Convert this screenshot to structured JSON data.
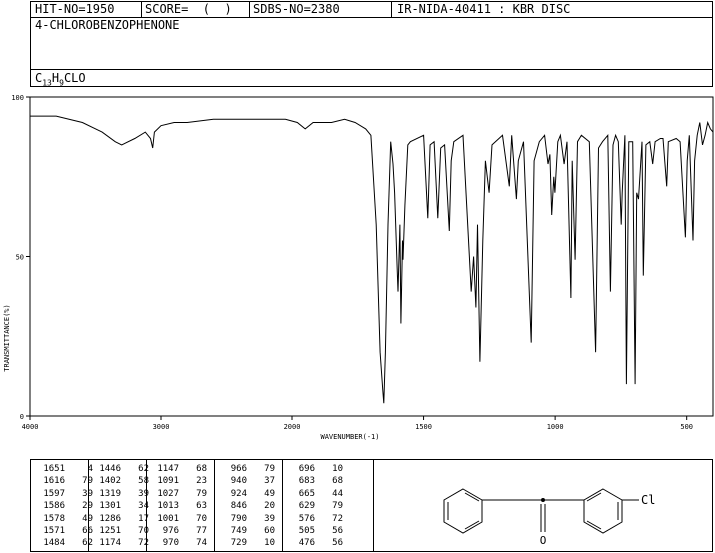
{
  "header": {
    "hit_no": "HIT-NO=1950",
    "score": "SCORE=  (  )",
    "sdbs_no": "SDBS-NO=2380",
    "ir_id": "IR-NIDA-40411 : KBR DISC",
    "compound_name": "4-CHLOROBENZOPHENONE",
    "formula": {
      "c": "C",
      "c_count": "13",
      "h": "H",
      "h_count": "9",
      "rest": "CLO"
    }
  },
  "chart_data": {
    "type": "line",
    "xlabel": "WAVENUMBER(-1)",
    "ylabel": "TRANSMITTANCE(%)",
    "xlim": [
      4000,
      400
    ],
    "ylim": [
      0,
      100
    ],
    "x_ticks": [
      "4000",
      "3000",
      "2000",
      "1500",
      "1000",
      "500"
    ],
    "y_ticks": [
      "100",
      "50",
      "0"
    ],
    "series": [
      {
        "points": [
          [
            4000,
            94
          ],
          [
            3800,
            94
          ],
          [
            3600,
            92
          ],
          [
            3450,
            89
          ],
          [
            3350,
            86
          ],
          [
            3300,
            85
          ],
          [
            3200,
            87
          ],
          [
            3120,
            89
          ],
          [
            3080,
            87
          ],
          [
            3063,
            84
          ],
          [
            3050,
            89
          ],
          [
            3000,
            91
          ],
          [
            2900,
            92
          ],
          [
            2800,
            92
          ],
          [
            2600,
            93
          ],
          [
            2400,
            93
          ],
          [
            2200,
            93
          ],
          [
            2050,
            93
          ],
          [
            1980,
            92
          ],
          [
            1950,
            90
          ],
          [
            1920,
            92
          ],
          [
            1850,
            92
          ],
          [
            1800,
            93
          ],
          [
            1760,
            92
          ],
          [
            1720,
            90
          ],
          [
            1700,
            88
          ],
          [
            1680,
            60
          ],
          [
            1665,
            20
          ],
          [
            1655,
            8
          ],
          [
            1651,
            4
          ],
          [
            1645,
            20
          ],
          [
            1635,
            60
          ],
          [
            1625,
            86
          ],
          [
            1616,
            79
          ],
          [
            1610,
            70
          ],
          [
            1600,
            45
          ],
          [
            1597,
            39
          ],
          [
            1590,
            60
          ],
          [
            1586,
            29
          ],
          [
            1580,
            55
          ],
          [
            1578,
            49
          ],
          [
            1571,
            66
          ],
          [
            1560,
            85
          ],
          [
            1550,
            86
          ],
          [
            1500,
            88
          ],
          [
            1484,
            62
          ],
          [
            1475,
            85
          ],
          [
            1460,
            86
          ],
          [
            1446,
            62
          ],
          [
            1435,
            84
          ],
          [
            1420,
            85
          ],
          [
            1402,
            58
          ],
          [
            1395,
            80
          ],
          [
            1385,
            86
          ],
          [
            1350,
            88
          ],
          [
            1319,
            39
          ],
          [
            1310,
            50
          ],
          [
            1301,
            34
          ],
          [
            1295,
            60
          ],
          [
            1286,
            17
          ],
          [
            1275,
            55
          ],
          [
            1265,
            80
          ],
          [
            1251,
            70
          ],
          [
            1240,
            85
          ],
          [
            1200,
            88
          ],
          [
            1174,
            72
          ],
          [
            1165,
            88
          ],
          [
            1147,
            68
          ],
          [
            1140,
            80
          ],
          [
            1120,
            86
          ],
          [
            1091,
            23
          ],
          [
            1080,
            80
          ],
          [
            1060,
            86
          ],
          [
            1040,
            88
          ],
          [
            1027,
            79
          ],
          [
            1020,
            82
          ],
          [
            1013,
            63
          ],
          [
            1005,
            75
          ],
          [
            1001,
            70
          ],
          [
            990,
            86
          ],
          [
            980,
            88
          ],
          [
            966,
            79
          ],
          [
            955,
            86
          ],
          [
            940,
            37
          ],
          [
            935,
            80
          ],
          [
            924,
            49
          ],
          [
            915,
            86
          ],
          [
            900,
            88
          ],
          [
            870,
            86
          ],
          [
            846,
            20
          ],
          [
            835,
            84
          ],
          [
            820,
            86
          ],
          [
            800,
            88
          ],
          [
            790,
            39
          ],
          [
            780,
            85
          ],
          [
            770,
            88
          ],
          [
            760,
            86
          ],
          [
            749,
            60
          ],
          [
            745,
            70
          ],
          [
            735,
            88
          ],
          [
            729,
            10
          ],
          [
            720,
            86
          ],
          [
            705,
            86
          ],
          [
            696,
            10
          ],
          [
            690,
            70
          ],
          [
            683,
            68
          ],
          [
            670,
            86
          ],
          [
            665,
            44
          ],
          [
            655,
            85
          ],
          [
            640,
            86
          ],
          [
            629,
            79
          ],
          [
            620,
            86
          ],
          [
            600,
            87
          ],
          [
            590,
            87
          ],
          [
            576,
            72
          ],
          [
            570,
            86
          ],
          [
            540,
            87
          ],
          [
            525,
            86
          ],
          [
            505,
            56
          ],
          [
            498,
            80
          ],
          [
            490,
            88
          ],
          [
            476,
            55
          ],
          [
            470,
            80
          ],
          [
            460,
            88
          ],
          [
            450,
            92
          ],
          [
            440,
            85
          ],
          [
            430,
            88
          ],
          [
            420,
            92
          ],
          [
            410,
            90
          ],
          [
            400,
            89
          ]
        ]
      }
    ]
  },
  "peak_table": [
    [
      [
        "1651",
        "4"
      ],
      [
        "1616",
        "79"
      ],
      [
        "1597",
        "39"
      ],
      [
        "1586",
        "29"
      ],
      [
        "1578",
        "49"
      ],
      [
        "1571",
        "66"
      ],
      [
        "1484",
        "62"
      ]
    ],
    [
      [
        "1446",
        "62"
      ],
      [
        "1402",
        "58"
      ],
      [
        "1319",
        "39"
      ],
      [
        "1301",
        "34"
      ],
      [
        "1286",
        "17"
      ],
      [
        "1251",
        "70"
      ],
      [
        "1174",
        "72"
      ]
    ],
    [
      [
        "1147",
        "68"
      ],
      [
        "1091",
        "23"
      ],
      [
        "1027",
        "79"
      ],
      [
        "1013",
        "63"
      ],
      [
        "1001",
        "70"
      ],
      [
        "976",
        "77"
      ],
      [
        "970",
        "74"
      ]
    ],
    [
      [
        "966",
        "79"
      ],
      [
        "940",
        "37"
      ],
      [
        "924",
        "49"
      ],
      [
        "846",
        "20"
      ],
      [
        "790",
        "39"
      ],
      [
        "749",
        "60"
      ],
      [
        "729",
        "10"
      ]
    ],
    [
      [
        "696",
        "10"
      ],
      [
        "683",
        "68"
      ],
      [
        "665",
        "44"
      ],
      [
        "629",
        "79"
      ],
      [
        "576",
        "72"
      ],
      [
        "505",
        "56"
      ],
      [
        "476",
        "56"
      ]
    ]
  ],
  "structure": {
    "chlorine_label": "Cl",
    "oxygen_label": "O"
  }
}
